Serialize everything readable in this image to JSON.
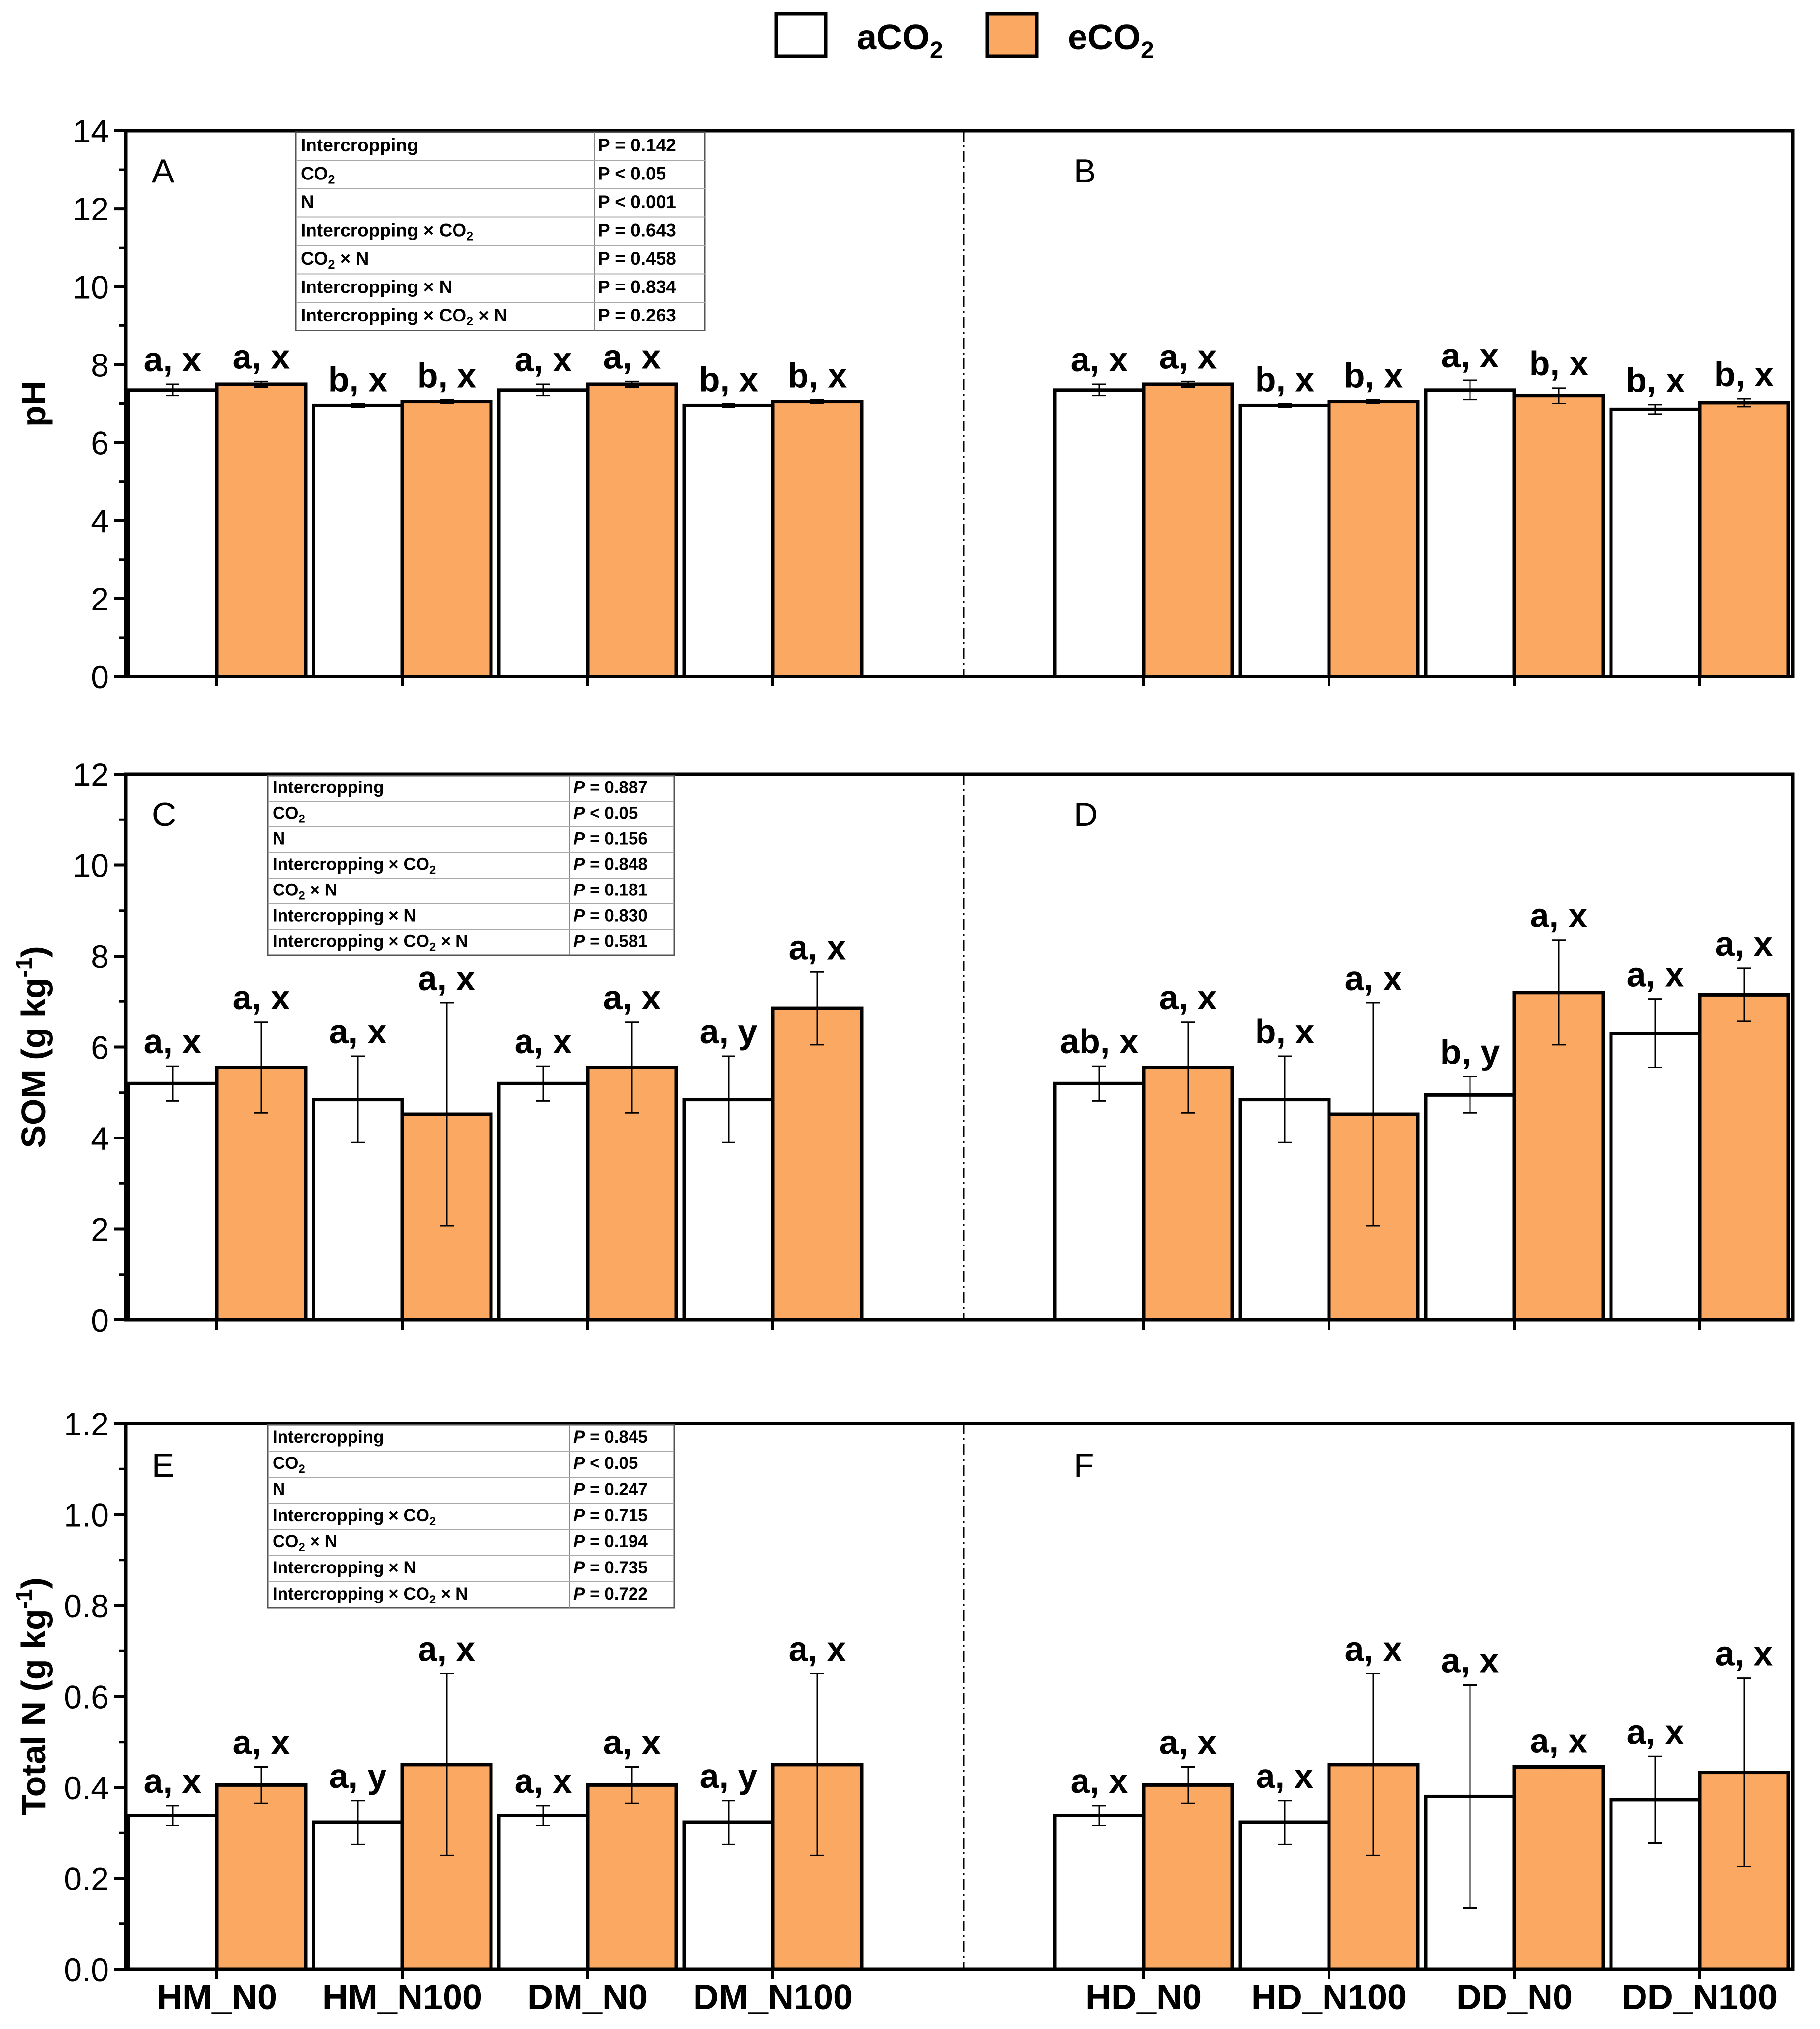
{
  "legend": [
    {
      "label": "aCO",
      "sub": "2",
      "color": "#ffffff"
    },
    {
      "label": "eCO",
      "sub": "2",
      "color": "#fba862"
    }
  ],
  "colors": {
    "aCO2": "#ffffff",
    "eCO2": "#fba862",
    "axis": "#000000"
  },
  "x_labels_left": [
    "HM_N0",
    "HM_N100",
    "DM_N0",
    "DM_N100"
  ],
  "x_labels_right": [
    "HD_N0",
    "HD_N100",
    "DD_N0",
    "DD_N100"
  ],
  "chart_data": [
    {
      "type": "bar",
      "panels": [
        "A",
        "B"
      ],
      "ylabel": "pH",
      "ylabel_sup": "",
      "ylim": [
        0,
        14
      ],
      "yticks": [
        0,
        2,
        4,
        6,
        8,
        10,
        12,
        14
      ],
      "series": [
        {
          "name": "aCO2",
          "values": [
            7.35,
            6.95,
            7.35,
            6.95,
            7.35,
            6.95,
            7.35,
            6.85
          ],
          "errors": [
            0.15,
            0.04,
            0.15,
            0.04,
            0.15,
            0.04,
            0.25,
            0.12
          ]
        },
        {
          "name": "eCO2",
          "values": [
            7.5,
            7.05,
            7.5,
            7.05,
            7.5,
            7.05,
            7.2,
            7.02
          ],
          "errors": [
            0.07,
            0.04,
            0.07,
            0.04,
            0.07,
            0.04,
            0.2,
            0.1
          ]
        }
      ],
      "letters": [
        [
          "a, x",
          "b, x",
          "a, x",
          "b, x",
          "a, x",
          "b, x",
          "a, x",
          "b, x"
        ],
        [
          "a, x",
          "b, x",
          "a, x",
          "b, x",
          "a, x",
          "b, x",
          "b, x",
          "b, x"
        ]
      ],
      "stats_italic": false,
      "stats": [
        {
          "term": "Intercropping",
          "p": "P = 0.142"
        },
        {
          "term": "CO",
          "sub": "2",
          "p": "P < 0.05"
        },
        {
          "term": "N",
          "p": "P < 0.001"
        },
        {
          "term": "Intercropping × CO",
          "sub": "2",
          "p": "P = 0.643"
        },
        {
          "term": "CO",
          "sub": "2",
          "tail": " × N",
          "p": "P = 0.458"
        },
        {
          "term": "Intercropping × N",
          "p": "P = 0.834"
        },
        {
          "term": "Intercropping × CO",
          "sub": "2",
          "tail": " × N",
          "p": "P = 0.263"
        }
      ]
    },
    {
      "type": "bar",
      "panels": [
        "C",
        "D"
      ],
      "ylabel": "SOM (g kg",
      "ylabel_sup": "-1",
      "ylabel_close": ")",
      "ylim": [
        0,
        12
      ],
      "yticks": [
        0,
        2,
        4,
        6,
        8,
        10,
        12
      ],
      "series": [
        {
          "name": "aCO2",
          "values": [
            5.2,
            4.85,
            5.2,
            4.85,
            5.2,
            4.85,
            4.95,
            6.3
          ],
          "errors": [
            0.38,
            0.95,
            0.38,
            0.95,
            0.38,
            0.95,
            0.4,
            0.75
          ]
        },
        {
          "name": "eCO2",
          "values": [
            5.55,
            4.52,
            5.55,
            6.85,
            5.55,
            4.52,
            7.2,
            7.15
          ],
          "errors": [
            1.0,
            2.45,
            1.0,
            0.8,
            1.0,
            2.45,
            1.15,
            0.58
          ]
        }
      ],
      "letters": [
        [
          "a, x",
          "a, x",
          "a, x",
          "a, y",
          "ab, x",
          "b, x",
          "b, y",
          "a, x"
        ],
        [
          "a, x",
          "a, x",
          "a, x",
          "a, x",
          "a, x",
          "a, x",
          "a, x",
          "a, x"
        ]
      ],
      "stats_italic": true,
      "stats": [
        {
          "term": "Intercropping",
          "p": "P = 0.887"
        },
        {
          "term": "CO",
          "sub": "2",
          "p": "P < 0.05"
        },
        {
          "term": "N",
          "p": "P = 0.156"
        },
        {
          "term": "Intercropping × CO",
          "sub": "2",
          "p": "P = 0.848"
        },
        {
          "term": "CO",
          "sub": "2",
          "tail": " × N",
          "p": "P = 0.181"
        },
        {
          "term": "Intercropping × N",
          "p": "P = 0.830"
        },
        {
          "term": "Intercropping × CO",
          "sub": "2",
          "tail": " × N",
          "p": "P = 0.581"
        }
      ]
    },
    {
      "type": "bar",
      "panels": [
        "E",
        "F"
      ],
      "ylabel": "Total N (g kg",
      "ylabel_sup": "-1",
      "ylabel_close": ")",
      "ylim": [
        0,
        1.2
      ],
      "yticks": [
        "0.0",
        "0.2",
        "0.4",
        "0.6",
        "0.8",
        "1.0",
        "1.2"
      ],
      "series": [
        {
          "name": "aCO2",
          "values": [
            0.338,
            0.323,
            0.338,
            0.323,
            0.338,
            0.323,
            0.38,
            0.373
          ],
          "errors": [
            0.022,
            0.048,
            0.022,
            0.048,
            0.022,
            0.048,
            0.245,
            0.095
          ]
        },
        {
          "name": "eCO2",
          "values": [
            0.405,
            0.45,
            0.405,
            0.45,
            0.405,
            0.45,
            0.445,
            0.433
          ],
          "errors": [
            0.04,
            0.2,
            0.04,
            0.2,
            0.04,
            0.2,
            0.003,
            0.207
          ]
        }
      ],
      "letters": [
        [
          "a, x",
          "a, y",
          "a, x",
          "a, y",
          "a, x",
          "a, x",
          "a, x",
          "a, x"
        ],
        [
          "a, x",
          "a, x",
          "a, x",
          "a, x",
          "a, x",
          "a, x",
          "a, x",
          "a, x"
        ]
      ],
      "stats_italic": true,
      "stats": [
        {
          "term": "Intercropping",
          "p": "P = 0.845"
        },
        {
          "term": "CO",
          "sub": "2",
          "p": "P < 0.05"
        },
        {
          "term": "N",
          "p": "P = 0.247"
        },
        {
          "term": "Intercropping × CO",
          "sub": "2",
          "p": "P = 0.715"
        },
        {
          "term": "CO",
          "sub": "2",
          "tail": " × N",
          "p": "P = 0.194"
        },
        {
          "term": "Intercropping × N",
          "p": "P = 0.735"
        },
        {
          "term": "Intercropping × CO",
          "sub": "2",
          "tail": " × N",
          "p": "P = 0.722"
        }
      ]
    }
  ]
}
